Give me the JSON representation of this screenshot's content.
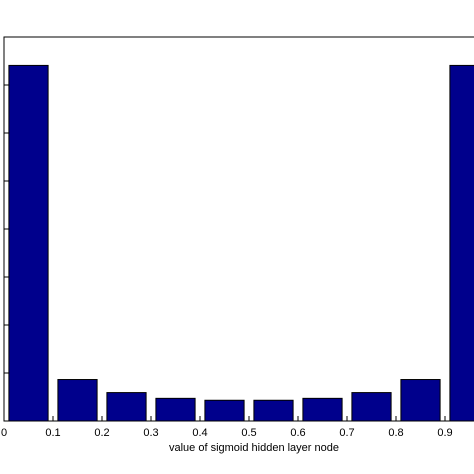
{
  "chart_data": {
    "type": "bar",
    "xlabel": "value of sigmoid hidden layer node",
    "categories": [
      "0",
      "0.1",
      "0.2",
      "0.3",
      "0.4",
      "0.5",
      "0.6",
      "0.7",
      "0.8",
      "0.9"
    ],
    "x_ticks": [
      "0",
      "0.1",
      "0.2",
      "0.3",
      "0.4",
      "0.5",
      "0.6",
      "0.7",
      "0.8",
      "0.9"
    ],
    "x_centers": [
      0.05,
      0.15,
      0.25,
      0.35,
      0.45,
      0.55,
      0.65,
      0.75,
      0.85,
      0.95
    ],
    "values": [
      0.926,
      0.108,
      0.074,
      0.059,
      0.054,
      0.054,
      0.059,
      0.074,
      0.108,
      0.926
    ],
    "xlim": [
      0.0,
      0.97
    ],
    "ylim": [
      0,
      1
    ],
    "y_ticks": [
      0,
      0.125,
      0.25,
      0.375,
      0.5,
      0.625,
      0.75,
      0.875,
      1.0
    ],
    "grid": false,
    "bar_color": "#00008c"
  }
}
